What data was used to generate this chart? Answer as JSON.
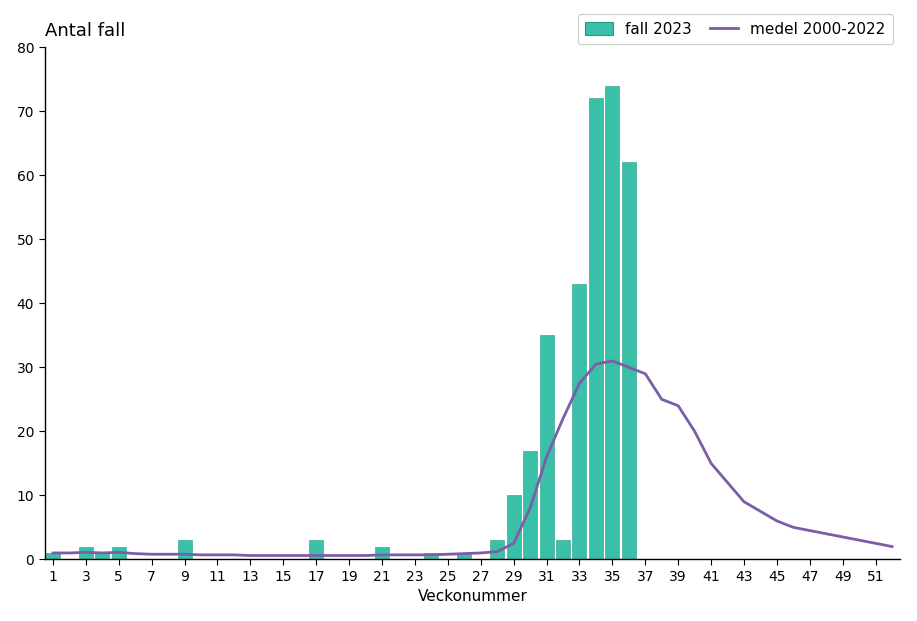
{
  "title": "Antal fall",
  "xlabel": "Veckonummer",
  "ylim": [
    0,
    80
  ],
  "yticks": [
    0,
    10,
    20,
    30,
    40,
    50,
    60,
    70,
    80
  ],
  "weeks": [
    1,
    2,
    3,
    4,
    5,
    6,
    7,
    8,
    9,
    10,
    11,
    12,
    13,
    14,
    15,
    16,
    17,
    18,
    19,
    20,
    21,
    22,
    23,
    24,
    25,
    26,
    27,
    28,
    29,
    30,
    31,
    32,
    33,
    34,
    35,
    36,
    37,
    38,
    39,
    40,
    41,
    42,
    43,
    44,
    45,
    46,
    47,
    48,
    49,
    50,
    51,
    52
  ],
  "bar_values": [
    1,
    0,
    2,
    1,
    2,
    0,
    0,
    0,
    3,
    0,
    0,
    0,
    0,
    0,
    0,
    0,
    3,
    0,
    0,
    0,
    2,
    0,
    0,
    1,
    0,
    1,
    0,
    3,
    10,
    17,
    35,
    3,
    43,
    72,
    74,
    62,
    0,
    0,
    0,
    0,
    0,
    0,
    0,
    0,
    0,
    0,
    0,
    0,
    0,
    0,
    0,
    0
  ],
  "mean_values": [
    1.0,
    1.0,
    1.1,
    1.0,
    1.1,
    0.9,
    0.8,
    0.8,
    0.8,
    0.7,
    0.7,
    0.7,
    0.6,
    0.6,
    0.6,
    0.6,
    0.6,
    0.6,
    0.6,
    0.6,
    0.7,
    0.7,
    0.7,
    0.7,
    0.8,
    0.9,
    1.0,
    1.2,
    2.5,
    8.0,
    16.0,
    22.0,
    27.5,
    30.5,
    31.0,
    30.0,
    29.0,
    25.0,
    24.0,
    20.0,
    15.0,
    12.0,
    9.0,
    7.5,
    6.0,
    5.0,
    4.5,
    4.0,
    3.5,
    3.0,
    2.5,
    2.0
  ],
  "bar_color": "#3abfa8",
  "bar_edgecolor": "#2a9a88",
  "line_color": "#7b5ea7",
  "legend_label_bar": "fall 2023",
  "legend_label_line": "medel 2000-2022",
  "background_color": "#ffffff",
  "title_fontsize": 13,
  "axis_label_fontsize": 11,
  "tick_fontsize": 10,
  "legend_fontsize": 11
}
